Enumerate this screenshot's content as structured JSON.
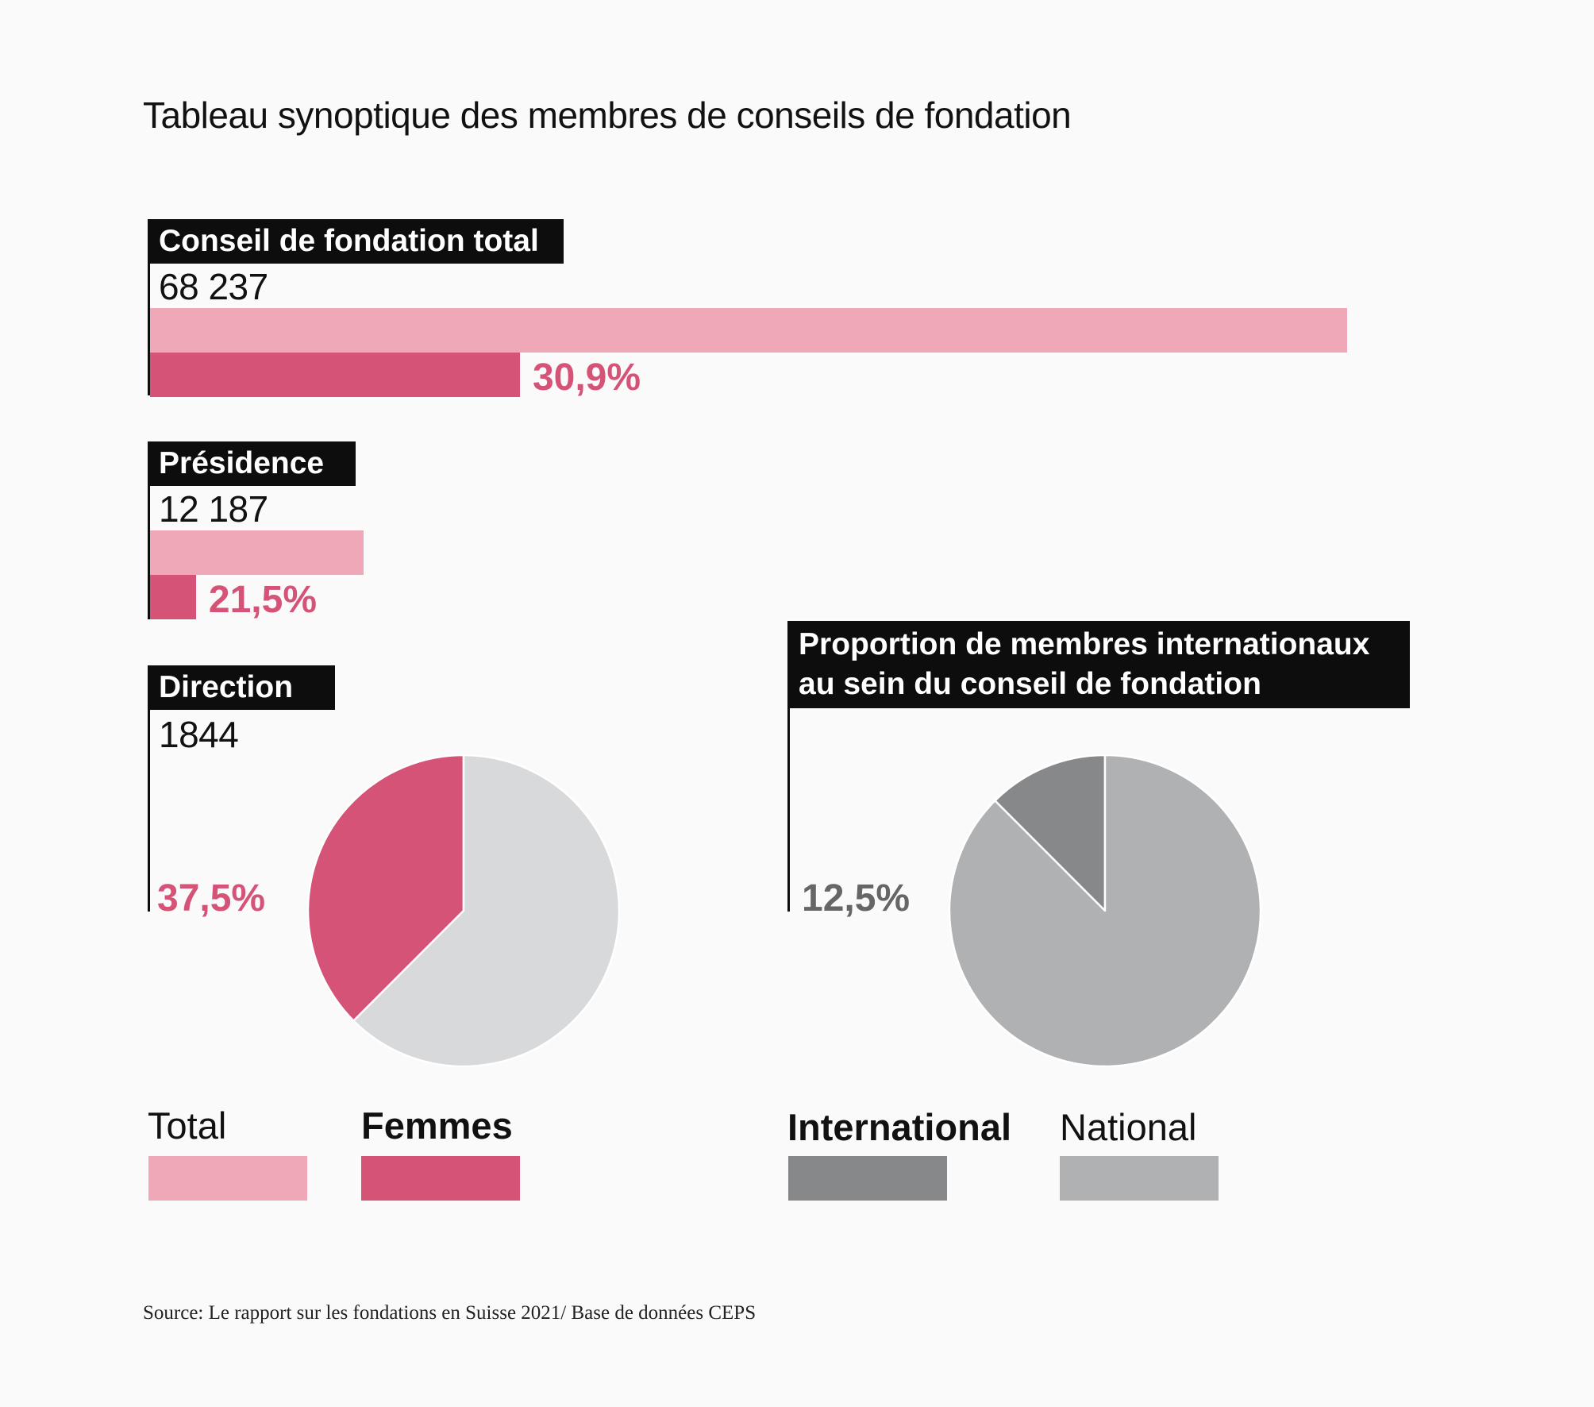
{
  "title": "Tableau synoptique des membres de conseils de fondation",
  "colors": {
    "total": "#efa8b8",
    "femmes": "#d45377",
    "pie_total": "#d8d9db",
    "international": "#878889",
    "national": "#b0b1b3",
    "pct_international": "#666666"
  },
  "sections": {
    "conseil": {
      "label": "Conseil de fondation total",
      "count": "68 237",
      "pct": "30,9%"
    },
    "presidence": {
      "label": "Présidence",
      "count": "12 187",
      "pct": "21,5%"
    },
    "direction": {
      "label": "Direction",
      "count": "1844",
      "pct": "37,5%"
    },
    "international": {
      "label_line1": "Proportion de membres internationaux",
      "label_line2": "au sein du conseil de fondation",
      "pct": "12,5%"
    }
  },
  "legend": {
    "total": "Total",
    "femmes": "Femmes",
    "international": "International",
    "national": "National"
  },
  "source": "Source: Le rapport sur les fondations en Suisse 2021/ Base de données CEPS",
  "chart_data": [
    {
      "type": "bar",
      "categories": [
        "Conseil de fondation total"
      ],
      "series": [
        {
          "name": "Total",
          "values": [
            68237
          ]
        },
        {
          "name": "Femmes",
          "values": [
            21085
          ]
        }
      ],
      "femmes_share_percent": 30.9
    },
    {
      "type": "bar",
      "categories": [
        "Présidence"
      ],
      "series": [
        {
          "name": "Total",
          "values": [
            12187
          ]
        },
        {
          "name": "Femmes",
          "values": [
            2620
          ]
        }
      ],
      "femmes_share_percent": 21.5
    },
    {
      "type": "pie",
      "categories": [
        "Direction"
      ],
      "total": 1844,
      "slices": [
        {
          "name": "Femmes",
          "value": 37.5
        },
        {
          "name": "Total",
          "value": 62.5
        }
      ]
    },
    {
      "type": "pie",
      "slices": [
        {
          "name": "International",
          "value": 12.5
        },
        {
          "name": "National",
          "value": 87.5
        }
      ]
    }
  ]
}
